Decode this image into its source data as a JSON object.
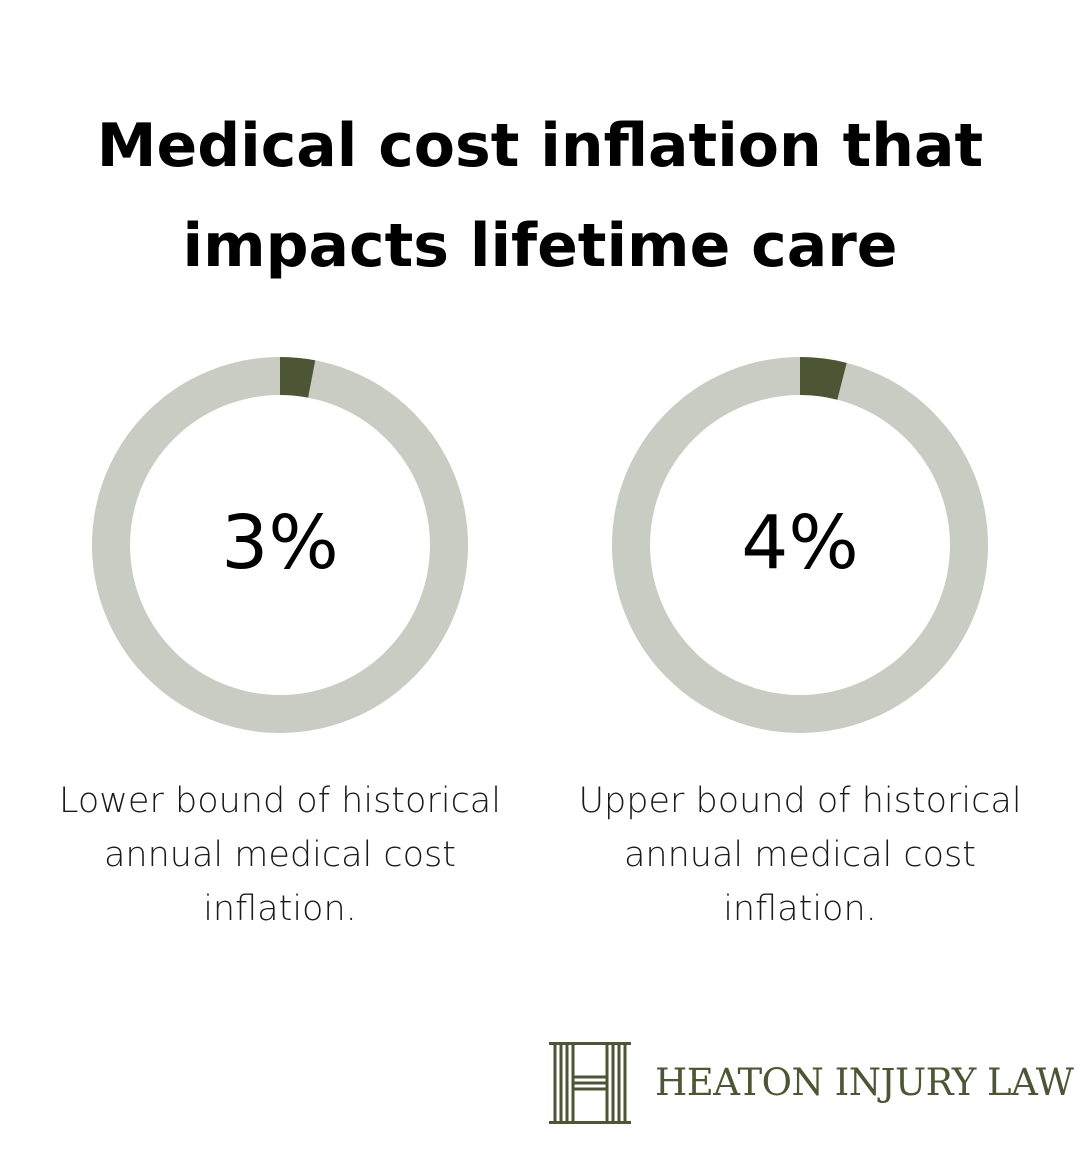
{
  "colors": {
    "track": "#c9ccc2",
    "fill": "#4c5634",
    "text": "#000000",
    "brand": "#4c5634"
  },
  "title": {
    "line1": "Medical cost inflation that",
    "line2": "impacts lifetime care"
  },
  "chart_data": [
    {
      "type": "pie",
      "value": 3,
      "max": 100,
      "label": "3%",
      "caption_lines": [
        "Lower bound of historical",
        "annual medical cost",
        "inflation."
      ]
    },
    {
      "type": "pie",
      "value": 4,
      "max": 100,
      "label": "4%",
      "caption_lines": [
        "Upper bound of historical",
        "annual medical cost",
        "inflation."
      ]
    }
  ],
  "logo": {
    "mark": "H-monogram-icon",
    "text": "HEATON INJURY LAW"
  }
}
